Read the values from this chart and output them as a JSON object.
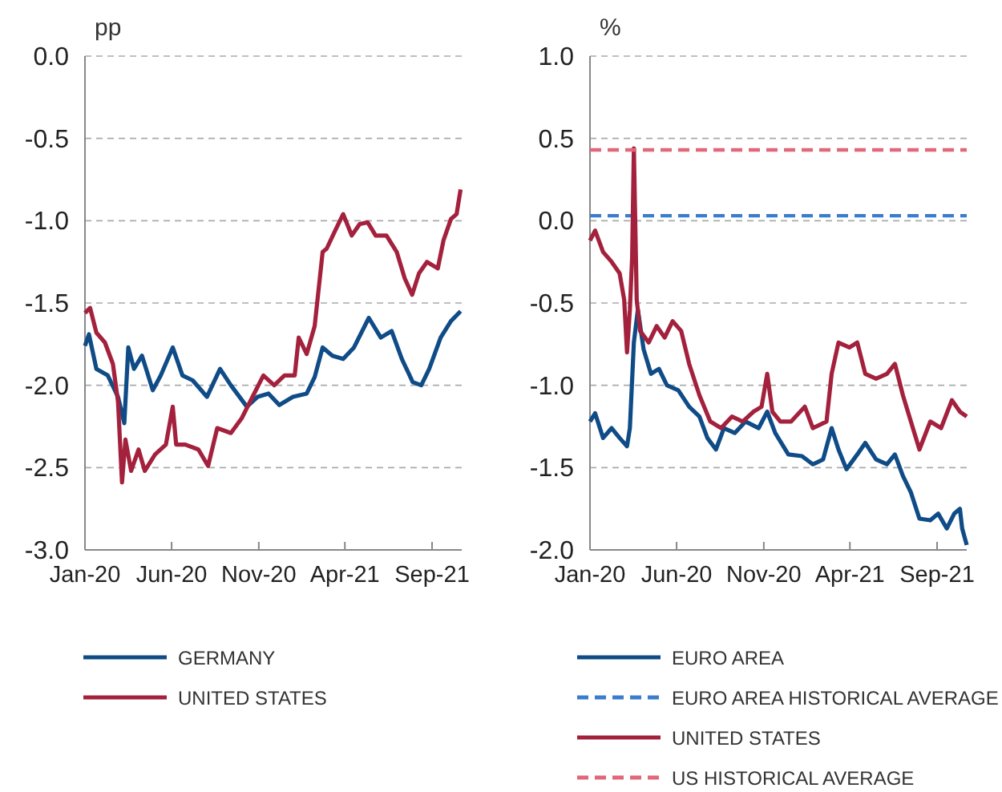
{
  "chart_data": [
    {
      "type": "line",
      "ylabel": "pp",
      "xlim": [
        "2020-01-01",
        "2021-10-23"
      ],
      "xticks": [
        {
          "value": "2020-01-01",
          "label": "Jan-20"
        },
        {
          "value": "2020-06-01",
          "label": "Jun-20"
        },
        {
          "value": "2020-11-01",
          "label": "Nov-20"
        },
        {
          "value": "2021-04-01",
          "label": "Apr-21"
        },
        {
          "value": "2021-09-01",
          "label": "Sep-21"
        }
      ],
      "ylim": [
        -3,
        0
      ],
      "yticks": [
        {
          "value": 0,
          "label": "0.0"
        },
        {
          "value": -0.5,
          "label": "-0.5"
        },
        {
          "value": -1,
          "label": "-1.0"
        },
        {
          "value": -1.5,
          "label": "-1.5"
        },
        {
          "value": -2,
          "label": "-2.0"
        },
        {
          "value": -2.5,
          "label": "-2.5"
        },
        {
          "value": -3,
          "label": "-3.0"
        }
      ],
      "grid": "y",
      "legend": "bottom",
      "line_style": "solid",
      "series": [
        {
          "name": "GERMANY",
          "color": "#0f4c87",
          "x": [
            "2020-01-01",
            "2020-01-08",
            "2020-01-21",
            "2020-02-10",
            "2020-02-28",
            "2020-03-10",
            "2020-03-17",
            "2020-03-27",
            "2020-04-10",
            "2020-04-29",
            "2020-05-13",
            "2020-06-03",
            "2020-06-20",
            "2020-07-08",
            "2020-08-02",
            "2020-08-25",
            "2020-09-13",
            "2020-10-11",
            "2020-10-30",
            "2020-11-18",
            "2020-12-07",
            "2020-12-31",
            "2021-01-24",
            "2021-02-07",
            "2021-02-21",
            "2021-03-10",
            "2021-03-29",
            "2021-04-17",
            "2021-05-13",
            "2021-06-03",
            "2021-06-22",
            "2021-07-10",
            "2021-07-29",
            "2021-08-13",
            "2021-08-27",
            "2021-09-16",
            "2021-10-04",
            "2021-10-21"
          ],
          "values": [
            -1.76,
            -1.69,
            -1.9,
            -1.94,
            -2.07,
            -2.23,
            -1.77,
            -1.9,
            -1.82,
            -2.03,
            -1.94,
            -1.77,
            -1.94,
            -1.97,
            -2.07,
            -1.9,
            -2.0,
            -2.13,
            -2.07,
            -2.05,
            -2.12,
            -2.07,
            -2.05,
            -1.95,
            -1.77,
            -1.82,
            -1.84,
            -1.77,
            -1.59,
            -1.71,
            -1.67,
            -1.84,
            -1.98,
            -2.0,
            -1.9,
            -1.71,
            -1.61,
            -1.55
          ]
        },
        {
          "name": "UNITED STATES",
          "color": "#a3213d",
          "x": [
            "2020-01-01",
            "2020-01-10",
            "2020-01-21",
            "2020-02-05",
            "2020-02-19",
            "2020-02-28",
            "2020-03-06",
            "2020-03-12",
            "2020-03-22",
            "2020-04-04",
            "2020-04-15",
            "2020-05-03",
            "2020-05-22",
            "2020-06-03",
            "2020-06-09",
            "2020-06-25",
            "2020-07-18",
            "2020-08-04",
            "2020-08-20",
            "2020-09-13",
            "2020-10-02",
            "2020-10-21",
            "2020-11-09",
            "2020-11-28",
            "2020-12-16",
            "2021-01-03",
            "2021-01-10",
            "2021-01-24",
            "2021-02-07",
            "2021-02-21",
            "2021-02-28",
            "2021-03-15",
            "2021-03-29",
            "2021-04-13",
            "2021-04-27",
            "2021-05-11",
            "2021-05-25",
            "2021-06-13",
            "2021-07-01",
            "2021-07-15",
            "2021-07-28",
            "2021-08-09",
            "2021-08-23",
            "2021-09-11",
            "2021-09-21",
            "2021-10-04",
            "2021-10-14",
            "2021-10-21"
          ],
          "values": [
            -1.56,
            -1.53,
            -1.68,
            -1.74,
            -1.87,
            -2.1,
            -2.59,
            -2.33,
            -2.52,
            -2.39,
            -2.52,
            -2.42,
            -2.36,
            -2.13,
            -2.36,
            -2.36,
            -2.39,
            -2.49,
            -2.26,
            -2.29,
            -2.2,
            -2.07,
            -1.94,
            -2.0,
            -1.94,
            -1.94,
            -1.71,
            -1.81,
            -1.64,
            -1.19,
            -1.17,
            -1.06,
            -0.96,
            -1.09,
            -1.02,
            -1.01,
            -1.09,
            -1.09,
            -1.19,
            -1.35,
            -1.45,
            -1.32,
            -1.25,
            -1.29,
            -1.12,
            -0.99,
            -0.96,
            -0.81
          ]
        }
      ]
    },
    {
      "type": "line",
      "ylabel": "%",
      "xlim": [
        "2020-01-01",
        "2021-10-23"
      ],
      "xticks": [
        {
          "value": "2020-01-01",
          "label": "Jan-20"
        },
        {
          "value": "2020-06-01",
          "label": "Jun-20"
        },
        {
          "value": "2020-11-01",
          "label": "Nov-20"
        },
        {
          "value": "2021-04-01",
          "label": "Apr-21"
        },
        {
          "value": "2021-09-01",
          "label": "Sep-21"
        }
      ],
      "ylim": [
        -2,
        1
      ],
      "yticks": [
        {
          "value": 1,
          "label": "1.0"
        },
        {
          "value": 0.5,
          "label": "0.5"
        },
        {
          "value": 0,
          "label": "0.0"
        },
        {
          "value": -0.5,
          "label": "-0.5"
        },
        {
          "value": -1,
          "label": "-1.0"
        },
        {
          "value": -1.5,
          "label": "-1.5"
        },
        {
          "value": -2,
          "label": "-2.0"
        }
      ],
      "grid": "y",
      "legend": "bottom",
      "line_style": "solid",
      "series": [
        {
          "name": "EURO AREA",
          "color": "#0f4c87",
          "x": [
            "2020-01-01",
            "2020-01-10",
            "2020-01-24",
            "2020-02-08",
            "2020-02-22",
            "2020-03-06",
            "2020-03-11",
            "2020-03-18",
            "2020-03-25",
            "2020-04-04",
            "2020-04-17",
            "2020-05-01",
            "2020-05-15",
            "2020-06-04",
            "2020-06-23",
            "2020-07-11",
            "2020-07-25",
            "2020-08-09",
            "2020-08-23",
            "2020-09-11",
            "2020-09-30",
            "2020-10-23",
            "2020-11-07",
            "2020-11-21",
            "2020-12-14",
            "2021-01-07",
            "2021-01-26",
            "2021-02-13",
            "2021-02-28",
            "2021-03-12",
            "2021-03-26",
            "2021-04-14",
            "2021-04-28",
            "2021-05-17",
            "2021-06-05",
            "2021-06-19",
            "2021-07-03",
            "2021-07-17",
            "2021-08-01",
            "2021-08-20",
            "2021-09-03",
            "2021-09-18",
            "2021-10-01",
            "2021-10-11",
            "2021-10-15",
            "2021-10-23"
          ],
          "values": [
            -1.22,
            -1.17,
            -1.32,
            -1.26,
            -1.32,
            -1.37,
            -1.26,
            -0.74,
            -0.54,
            -0.78,
            -0.93,
            -0.9,
            -1.0,
            -1.03,
            -1.13,
            -1.19,
            -1.32,
            -1.39,
            -1.26,
            -1.29,
            -1.22,
            -1.26,
            -1.16,
            -1.29,
            -1.42,
            -1.43,
            -1.48,
            -1.45,
            -1.26,
            -1.39,
            -1.51,
            -1.42,
            -1.35,
            -1.45,
            -1.48,
            -1.42,
            -1.55,
            -1.65,
            -1.81,
            -1.82,
            -1.78,
            -1.87,
            -1.78,
            -1.75,
            -1.87,
            -1.97
          ]
        },
        {
          "name": "EURO AREA HISTORICAL AVERAGE",
          "color": "#3a7dcc",
          "line_style": "dashed",
          "x": [
            "2020-01-01",
            "2021-10-23"
          ],
          "values": [
            0.03,
            0.03
          ]
        },
        {
          "name": "UNITED STATES",
          "color": "#a3213d",
          "x": [
            "2020-01-01",
            "2020-01-10",
            "2020-01-24",
            "2020-02-08",
            "2020-02-22",
            "2020-03-01",
            "2020-03-06",
            "2020-03-11",
            "2020-03-15",
            "2020-03-18",
            "2020-03-23",
            "2020-03-29",
            "2020-04-13",
            "2020-04-27",
            "2020-05-11",
            "2020-05-25",
            "2020-06-09",
            "2020-06-23",
            "2020-07-11",
            "2020-07-30",
            "2020-08-18",
            "2020-09-06",
            "2020-09-25",
            "2020-10-14",
            "2020-10-28",
            "2020-11-07",
            "2020-11-16",
            "2020-11-30",
            "2020-12-19",
            "2021-01-12",
            "2021-01-26",
            "2021-02-19",
            "2021-02-28",
            "2021-03-12",
            "2021-03-31",
            "2021-04-14",
            "2021-04-28",
            "2021-05-17",
            "2021-06-05",
            "2021-06-19",
            "2021-07-03",
            "2021-07-17",
            "2021-08-01",
            "2021-08-20",
            "2021-09-08",
            "2021-09-27",
            "2021-10-11",
            "2021-10-23"
          ],
          "values": [
            -0.12,
            -0.06,
            -0.19,
            -0.25,
            -0.32,
            -0.48,
            -0.8,
            -0.54,
            -0.22,
            0.44,
            -0.48,
            -0.67,
            -0.74,
            -0.64,
            -0.71,
            -0.61,
            -0.67,
            -0.87,
            -1.06,
            -1.22,
            -1.26,
            -1.19,
            -1.22,
            -1.16,
            -1.13,
            -0.93,
            -1.16,
            -1.22,
            -1.22,
            -1.13,
            -1.26,
            -1.22,
            -0.93,
            -0.74,
            -0.77,
            -0.74,
            -0.93,
            -0.96,
            -0.93,
            -0.87,
            -1.06,
            -1.22,
            -1.39,
            -1.22,
            -1.26,
            -1.09,
            -1.16,
            -1.19
          ]
        },
        {
          "name": "US HISTORICAL AVERAGE",
          "color": "#e0687a",
          "line_style": "dashed",
          "x": [
            "2020-01-01",
            "2021-10-23"
          ],
          "values": [
            0.43,
            0.43
          ]
        }
      ]
    }
  ]
}
